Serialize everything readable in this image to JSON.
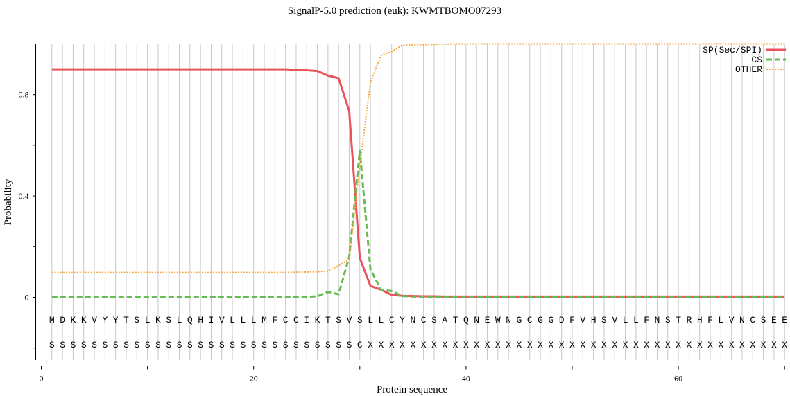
{
  "chart_data": {
    "type": "line",
    "title": "SignalP-5.0 prediction (euk):  KWMTBOMO07293",
    "xlabel": "Protein sequence",
    "ylabel": "Probability",
    "xlim": [
      0,
      70
    ],
    "ylim": [
      -0.25,
      1.0
    ],
    "x_ticks": [
      0,
      20,
      40,
      60
    ],
    "x_tick_labels": [
      "0",
      "20",
      "40",
      "60"
    ],
    "y_ticks": [
      0,
      0.4,
      0.8
    ],
    "y_tick_labels": [
      "0",
      "0.4",
      "0.8"
    ],
    "grid": "vertical lines at each residue position",
    "legend_position": "top-right",
    "sequence": [
      "M",
      "D",
      "K",
      "K",
      "V",
      "Y",
      "Y",
      "T",
      "S",
      "L",
      "K",
      "S",
      "L",
      "Q",
      "H",
      "I",
      "V",
      "L",
      "L",
      "L",
      "M",
      "F",
      "C",
      "C",
      "I",
      "K",
      "T",
      "S",
      "V",
      "S",
      "L",
      "L",
      "C",
      "Y",
      "N",
      "C",
      "S",
      "A",
      "T",
      "Q",
      "N",
      "E",
      "W",
      "N",
      "G",
      "C",
      "G",
      "G",
      "D",
      "F",
      "V",
      "H",
      "S",
      "V",
      "L",
      "L",
      "F",
      "N",
      "S",
      "T",
      "R",
      "H",
      "F",
      "L",
      "V",
      "N",
      "C",
      "S",
      "E",
      "E"
    ],
    "labels": [
      "S",
      "S",
      "S",
      "S",
      "S",
      "S",
      "S",
      "S",
      "S",
      "S",
      "S",
      "S",
      "S",
      "S",
      "S",
      "S",
      "S",
      "S",
      "S",
      "S",
      "S",
      "S",
      "S",
      "S",
      "S",
      "S",
      "S",
      "S",
      "S",
      "C",
      "X",
      "X",
      "X",
      "X",
      "X",
      "X",
      "X",
      "X",
      "X",
      "X",
      "X",
      "X",
      "X",
      "X",
      "X",
      "X",
      "X",
      "X",
      "X",
      "X",
      "X",
      "X",
      "X",
      "X",
      "X",
      "X",
      "X",
      "X",
      "X",
      "X",
      "X",
      "X",
      "X",
      "X",
      "X",
      "X",
      "X",
      "X",
      "X",
      "X"
    ],
    "x": [
      1,
      2,
      3,
      4,
      5,
      6,
      7,
      8,
      9,
      10,
      11,
      12,
      13,
      14,
      15,
      16,
      17,
      18,
      19,
      20,
      21,
      22,
      23,
      24,
      25,
      26,
      27,
      28,
      29,
      30,
      31,
      32,
      33,
      34,
      35,
      36,
      37,
      38,
      39,
      40,
      41,
      42,
      43,
      44,
      45,
      46,
      47,
      48,
      49,
      50,
      51,
      52,
      53,
      54,
      55,
      56,
      57,
      58,
      59,
      60,
      61,
      62,
      63,
      64,
      65,
      66,
      67,
      68,
      69,
      70
    ],
    "series": [
      {
        "name": "SP(Sec/SPI)",
        "color": "#e8545a",
        "dash": "solid",
        "values": [
          0.9,
          0.9,
          0.9,
          0.9,
          0.9,
          0.9,
          0.9,
          0.9,
          0.9,
          0.9,
          0.9,
          0.9,
          0.9,
          0.9,
          0.9,
          0.9,
          0.9,
          0.9,
          0.9,
          0.9,
          0.9,
          0.9,
          0.9,
          0.898,
          0.896,
          0.893,
          0.875,
          0.865,
          0.735,
          0.155,
          0.045,
          0.03,
          0.01,
          0.006,
          0.005,
          0.004,
          0.004,
          0.003,
          0.003,
          0.003,
          0.003,
          0.003,
          0.003,
          0.003,
          0.003,
          0.003,
          0.003,
          0.003,
          0.003,
          0.003,
          0.003,
          0.003,
          0.003,
          0.003,
          0.003,
          0.003,
          0.003,
          0.003,
          0.003,
          0.003,
          0.003,
          0.003,
          0.003,
          0.003,
          0.003,
          0.003,
          0.003,
          0.003,
          0.003,
          0.003
        ]
      },
      {
        "name": "CS",
        "color": "#66bb55",
        "dash": "dashed",
        "values": [
          0,
          0,
          0,
          0,
          0,
          0,
          0,
          0,
          0,
          0,
          0,
          0,
          0,
          0,
          0,
          0,
          0,
          0,
          0,
          0,
          0,
          0,
          0,
          0.001,
          0.002,
          0.004,
          0.022,
          0.012,
          0.16,
          0.58,
          0.11,
          0.03,
          0.025,
          0.005,
          0.003,
          0.002,
          0.002,
          0.001,
          0.001,
          0.001,
          0.001,
          0.001,
          0.001,
          0.001,
          0.001,
          0.001,
          0.001,
          0.001,
          0.001,
          0.001,
          0.001,
          0.001,
          0.001,
          0.001,
          0.001,
          0.001,
          0.001,
          0.001,
          0.001,
          0.001,
          0.001,
          0.001,
          0.001,
          0.001,
          0.001,
          0.001,
          0.001,
          0.001,
          0.001,
          0.001
        ]
      },
      {
        "name": "OTHER",
        "color": "#f5a640",
        "dash": "dotted",
        "values": [
          0.098,
          0.098,
          0.098,
          0.098,
          0.098,
          0.098,
          0.098,
          0.098,
          0.098,
          0.098,
          0.098,
          0.098,
          0.098,
          0.098,
          0.098,
          0.098,
          0.098,
          0.098,
          0.098,
          0.098,
          0.098,
          0.098,
          0.098,
          0.099,
          0.1,
          0.101,
          0.103,
          0.125,
          0.15,
          0.52,
          0.85,
          0.955,
          0.97,
          0.995,
          0.996,
          0.997,
          0.998,
          0.999,
          1.0,
          1.0,
          1.0,
          1.0,
          1.0,
          1.0,
          1.0,
          1.0,
          1.0,
          1.0,
          1.0,
          1.0,
          1.0,
          1.0,
          1.0,
          1.0,
          1.0,
          1.0,
          1.0,
          1.0,
          1.0,
          1.0,
          1.0,
          1.0,
          1.0,
          1.0,
          1.0,
          1.0,
          1.0,
          1.0,
          1.0,
          1.0
        ]
      }
    ]
  }
}
